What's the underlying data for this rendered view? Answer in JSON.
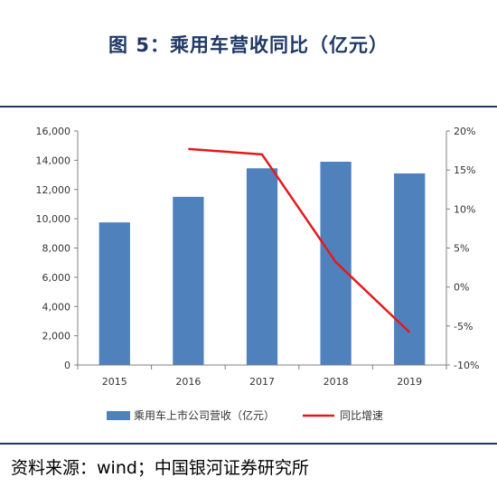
{
  "title": "图 5：乘用车营收同比（亿元）",
  "source": "资料来源：wind；中国银河证券研究所",
  "colors": {
    "bar": "#4f81bd",
    "line": "#e31a1c",
    "title": "#1f3864",
    "grid": "#d9d9d9",
    "axis": "#808080"
  },
  "chart_data": {
    "type": "bar",
    "categories": [
      "2015",
      "2016",
      "2017",
      "2018",
      "2019"
    ],
    "series": [
      {
        "name": "乘用车上市公司营收（亿元）",
        "type": "bar",
        "axis": "left",
        "values": [
          9750,
          11500,
          13450,
          13900,
          13100
        ]
      },
      {
        "name": "同比增速",
        "type": "line",
        "axis": "right",
        "values": [
          null,
          0.177,
          0.17,
          0.032,
          -0.058
        ]
      }
    ],
    "yleft": {
      "lim": [
        0,
        16000
      ],
      "ticks": [
        0,
        2000,
        4000,
        6000,
        8000,
        10000,
        12000,
        14000,
        16000
      ],
      "tick_labels": [
        "0",
        "2,000",
        "4,000",
        "6,000",
        "8,000",
        "10,000",
        "12,000",
        "14,000",
        "16,000"
      ]
    },
    "yright": {
      "lim": [
        -0.1,
        0.2
      ],
      "ticks": [
        -0.1,
        -0.05,
        0.0,
        0.05,
        0.1,
        0.15,
        0.2
      ],
      "tick_labels": [
        "-10%",
        "-5%",
        "0%",
        "5%",
        "10%",
        "15%",
        "20%"
      ]
    },
    "legend": "bottom",
    "grid": false
  }
}
